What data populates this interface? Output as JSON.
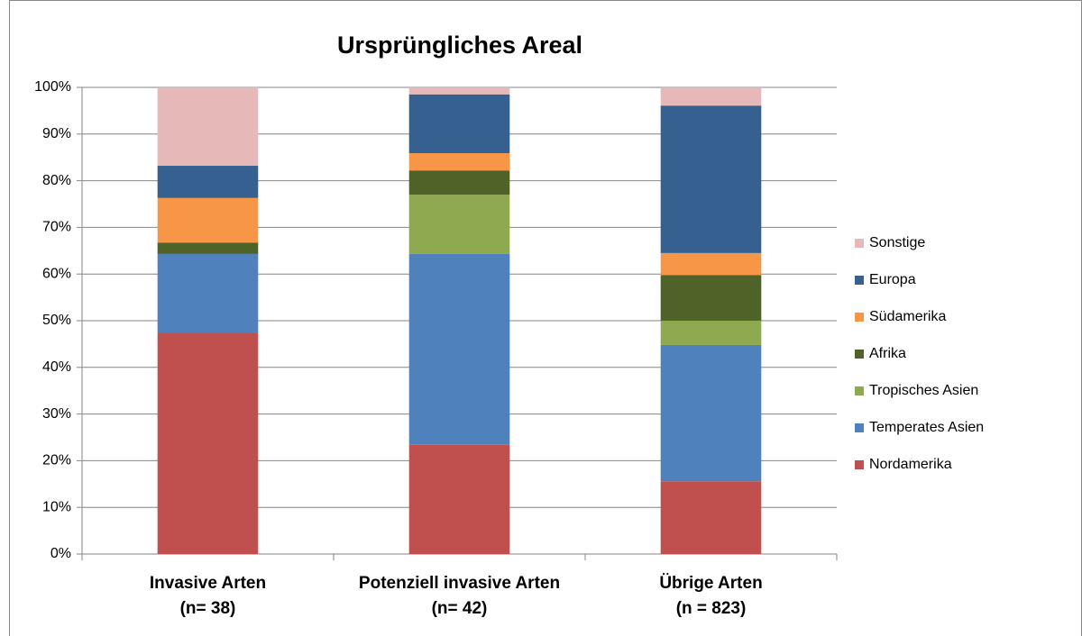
{
  "chart_data": {
    "type": "stacked_bar",
    "title": "Ursprüngliches Areal",
    "categories": [
      "Invasive Arten\n(n= 38)",
      "Potenziell invasive Arten\n(n= 42)",
      "Übrige Arten\n(n = 823)"
    ],
    "series": [
      {
        "name": "Nordamerika",
        "color": "#c0504d",
        "values": [
          47.4,
          23.4,
          15.6
        ]
      },
      {
        "name": "Temperates Asien",
        "color": "#4f81bd",
        "values": [
          16.9,
          40.9,
          29.2
        ]
      },
      {
        "name": "Tropisches Asien",
        "color": "#8ea94f",
        "values": [
          0,
          12.7,
          5.2
        ]
      },
      {
        "name": "Afrika",
        "color": "#4f6228",
        "values": [
          2.4,
          5.2,
          9.8
        ]
      },
      {
        "name": "Südamerika",
        "color": "#f79646",
        "values": [
          9.6,
          3.7,
          4.7
        ]
      },
      {
        "name": "Europa",
        "color": "#35608f",
        "values": [
          6.9,
          12.6,
          31.6
        ]
      },
      {
        "name": "Sonstige",
        "color": "#e6b9b8",
        "values": [
          16.8,
          1.5,
          3.9
        ]
      }
    ],
    "ylim": [
      0,
      100
    ],
    "yticks": [
      {
        "value": 0,
        "label": "0%"
      },
      {
        "value": 10,
        "label": "10%"
      },
      {
        "value": 20,
        "label": "20%"
      },
      {
        "value": 30,
        "label": "30%"
      },
      {
        "value": 40,
        "label": "40%"
      },
      {
        "value": 50,
        "label": "50%"
      },
      {
        "value": 60,
        "label": "60%"
      },
      {
        "value": 70,
        "label": "70%"
      },
      {
        "value": 80,
        "label": "80%"
      },
      {
        "value": 90,
        "label": "90%"
      },
      {
        "value": 100,
        "label": "100%"
      }
    ],
    "grid": true,
    "legend": "right"
  }
}
